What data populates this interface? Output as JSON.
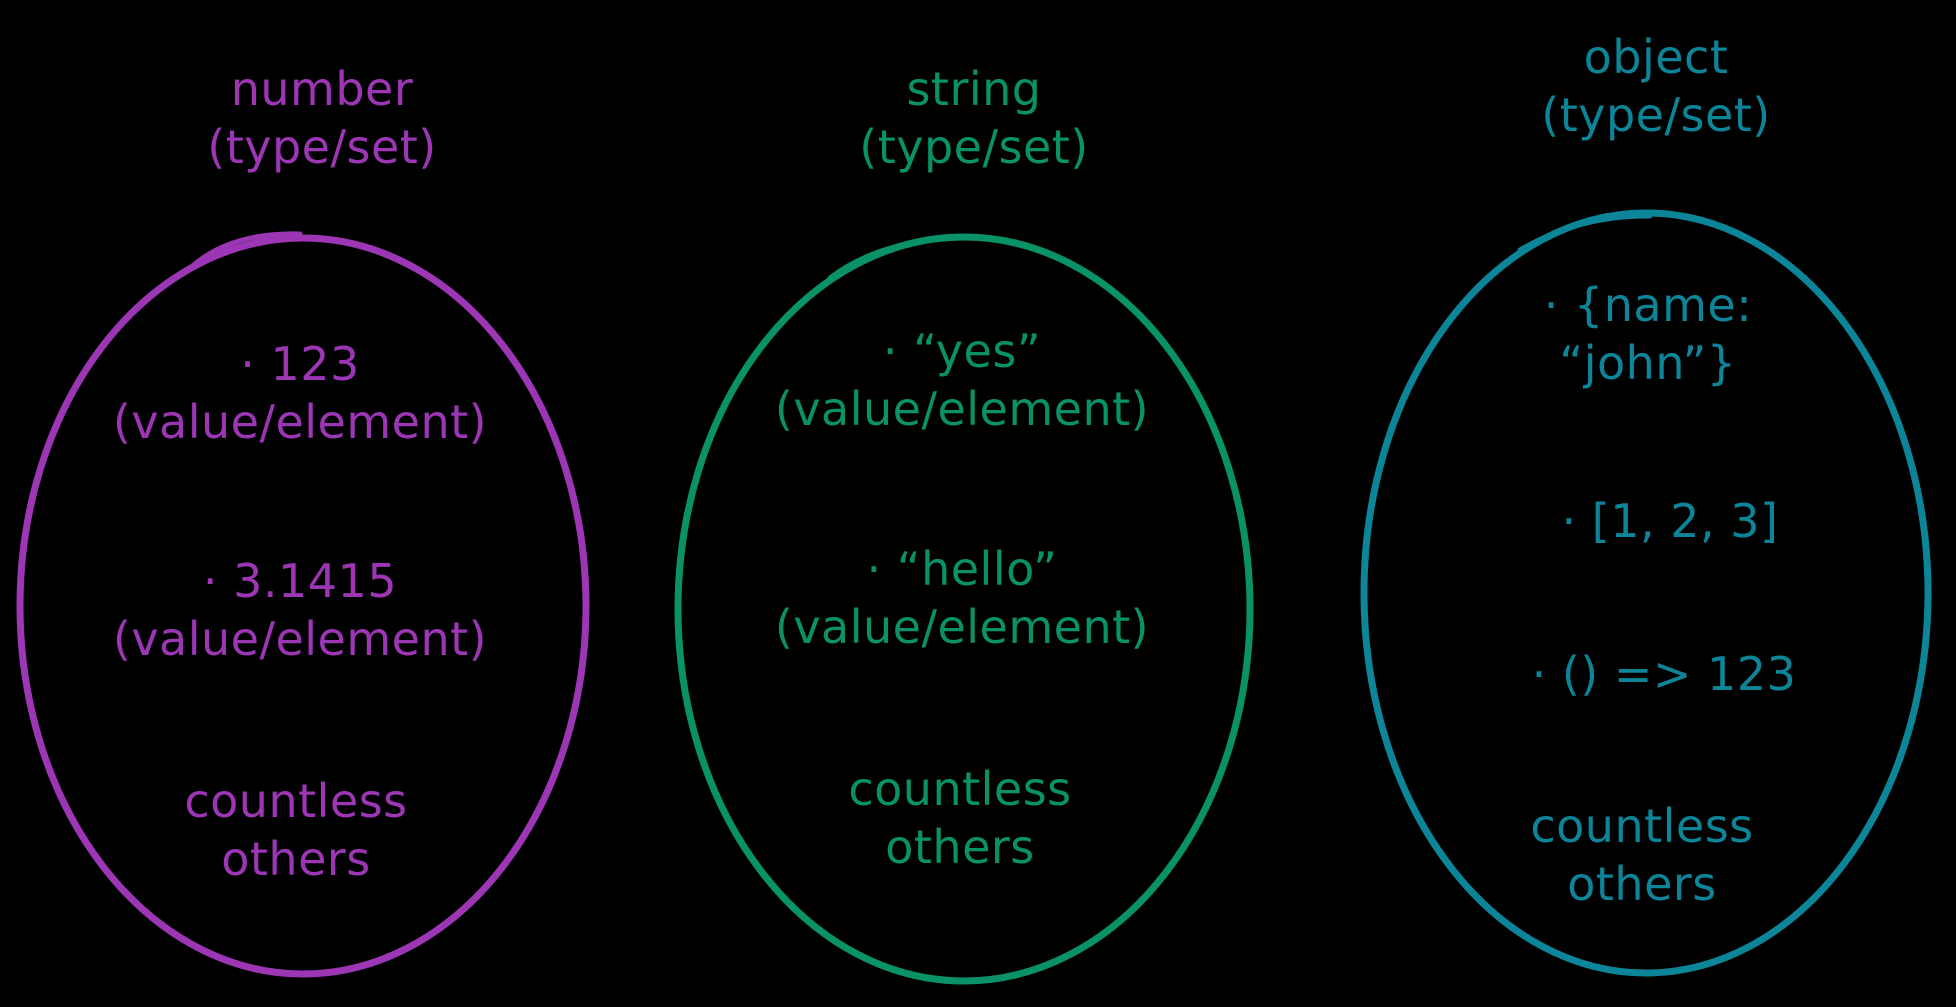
{
  "colors": {
    "number": "#9c36b5",
    "string": "#099268",
    "object": "#0c8599",
    "background": "#000000"
  },
  "sets": [
    {
      "title": "number",
      "subtitle": "(type/set)",
      "elements": [
        {
          "value": "· 123",
          "caption": "(value/element)"
        },
        {
          "value": "· 3.1415",
          "caption": "(value/element)"
        }
      ],
      "others": [
        "countless",
        "others"
      ]
    },
    {
      "title": "string",
      "subtitle": "(type/set)",
      "elements": [
        {
          "value": "· “yes”",
          "caption": "(value/element)"
        },
        {
          "value": "· “hello”",
          "caption": "(value/element)"
        }
      ],
      "others": [
        "countless",
        "others"
      ]
    },
    {
      "title": "object",
      "subtitle": "(type/set)",
      "elements": [
        {
          "value": "· {name:",
          "caption": "“john”}"
        },
        {
          "value": "· [1, 2, 3]"
        },
        {
          "value": "· () => 123"
        }
      ],
      "others": [
        "countless",
        "others"
      ]
    }
  ]
}
